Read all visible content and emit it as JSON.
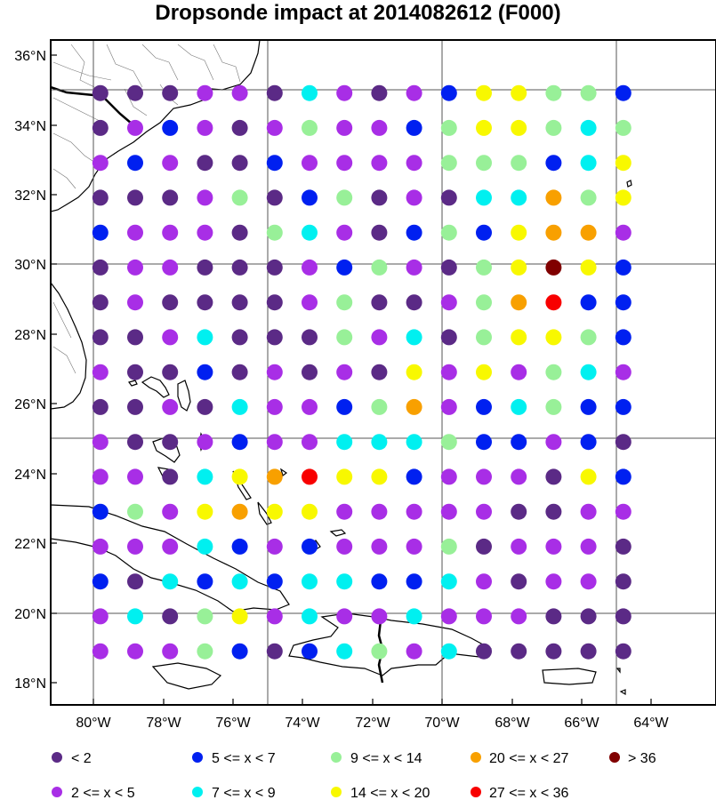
{
  "title": "Dropsonde impact at 2014082612 (F000)",
  "lat_labels": [
    "36°N",
    "34°N",
    "32°N",
    "30°N",
    "28°N",
    "26°N",
    "24°N",
    "22°N",
    "20°N",
    "18°N"
  ],
  "lon_labels": [
    "80°W",
    "78°W",
    "76°W",
    "74°W",
    "72°W",
    "70°W",
    "68°W",
    "66°W",
    "64°W"
  ],
  "categories": [
    {
      "label": "<  2",
      "color": "#5b2a86"
    },
    {
      "label": "2 <= x <  5",
      "color": "#a82ee6"
    },
    {
      "label": "5 <= x <  7",
      "color": "#0020f0"
    },
    {
      "label": "7 <= x <  9",
      "color": "#00f0f0"
    },
    {
      "label": "9 <= x < 14",
      "color": "#98f098"
    },
    {
      "label": "14 <= x < 20",
      "color": "#f8f800"
    },
    {
      "label": "20 <= x < 27",
      "color": "#f8a000"
    },
    {
      "label": "27 <= x < 36",
      "color": "#f80000"
    },
    {
      "label": "> 36",
      "color": "#800000"
    }
  ],
  "grid": {
    "lon_start": -79.8,
    "lon_step": 1.0,
    "lat_start": 34.9,
    "lat_step": -1.0,
    "rows": [
      [
        0,
        0,
        0,
        1,
        1,
        0,
        3,
        1,
        0,
        1,
        2,
        5,
        5,
        4,
        4,
        2
      ],
      [
        0,
        1,
        2,
        1,
        0,
        1,
        4,
        1,
        1,
        2,
        4,
        5,
        5,
        4,
        3,
        4
      ],
      [
        1,
        2,
        1,
        0,
        0,
        2,
        1,
        1,
        1,
        1,
        4,
        4,
        4,
        2,
        3,
        5
      ],
      [
        0,
        0,
        0,
        1,
        4,
        0,
        2,
        4,
        0,
        1,
        0,
        3,
        3,
        6,
        4,
        5
      ],
      [
        2,
        1,
        1,
        1,
        0,
        4,
        3,
        1,
        0,
        2,
        4,
        2,
        5,
        6,
        6,
        1
      ],
      [
        0,
        1,
        1,
        0,
        0,
        0,
        1,
        2,
        4,
        1,
        0,
        4,
        5,
        8,
        5,
        2
      ],
      [
        0,
        1,
        0,
        0,
        0,
        0,
        1,
        4,
        0,
        0,
        1,
        4,
        6,
        7,
        2,
        2
      ],
      [
        0,
        0,
        1,
        3,
        0,
        0,
        0,
        4,
        1,
        3,
        0,
        4,
        5,
        5,
        4,
        2
      ],
      [
        1,
        0,
        0,
        2,
        0,
        1,
        0,
        1,
        0,
        5,
        1,
        5,
        1,
        4,
        3,
        1
      ],
      [
        0,
        0,
        1,
        0,
        3,
        1,
        1,
        2,
        4,
        6,
        1,
        2,
        3,
        4,
        2,
        2
      ],
      [
        1,
        0,
        0,
        1,
        2,
        1,
        1,
        3,
        3,
        3,
        4,
        2,
        2,
        1,
        2,
        0
      ],
      [
        1,
        1,
        0,
        3,
        5,
        6,
        7,
        5,
        5,
        2,
        1,
        1,
        1,
        0,
        5,
        2
      ],
      [
        2,
        4,
        1,
        5,
        6,
        5,
        5,
        1,
        1,
        1,
        1,
        1,
        0,
        0,
        1,
        1
      ],
      [
        1,
        1,
        1,
        3,
        2,
        1,
        2,
        1,
        1,
        1,
        4,
        0,
        1,
        1,
        1,
        0
      ],
      [
        2,
        0,
        3,
        2,
        3,
        2,
        3,
        3,
        2,
        2,
        3,
        1,
        0,
        1,
        1,
        0
      ],
      [
        1,
        3,
        0,
        4,
        5,
        1,
        3,
        1,
        1,
        3,
        1,
        1,
        1,
        0,
        0,
        0
      ],
      [
        1,
        1,
        1,
        4,
        2,
        0,
        2,
        3,
        4,
        1,
        3,
        0,
        0,
        0,
        0,
        0
      ]
    ]
  }
}
